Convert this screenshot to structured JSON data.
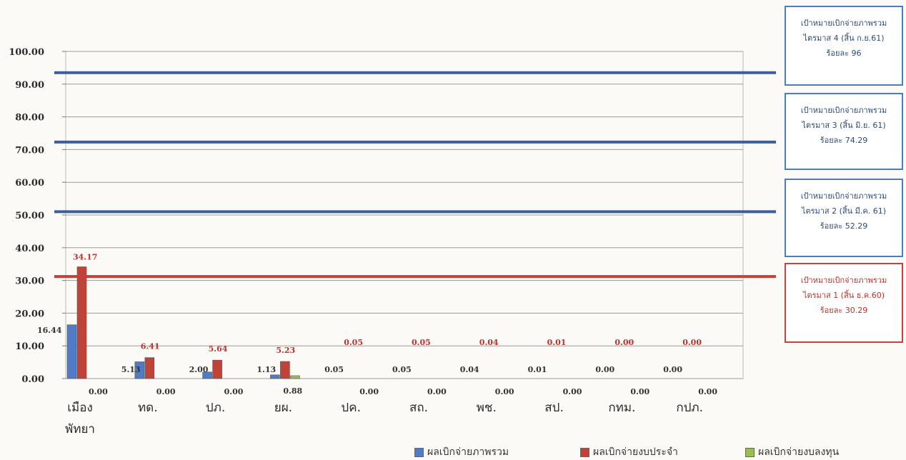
{
  "chart_data": {
    "type": "bar",
    "categories": [
      "เมือง\nพัทยา",
      "ทด.",
      "ปภ.",
      "ยผ.",
      "ปค.",
      "สถ.",
      "พช.",
      "สป.",
      "กทม.",
      "กปภ."
    ],
    "y_ticks": [
      "0.00",
      "10.00",
      "20.00",
      "30.00",
      "40.00",
      "50.00",
      "60.00",
      "70.00",
      "80.00",
      "90.00",
      "100.00"
    ],
    "ylim": [
      0,
      100
    ],
    "grid": true,
    "series": [
      {
        "name": "ผลเบิกจ่ายภาพรวม",
        "color": "#4f7cc4",
        "values": [
          16.44,
          5.13,
          2.0,
          1.13,
          0.05,
          0.05,
          0.04,
          0.01,
          0.0,
          0.0
        ],
        "labels": [
          "16.44",
          "5.13",
          "2.00",
          "1.13",
          "0.05",
          "0.05",
          "0.04",
          "0.01",
          "0.00",
          "0.00"
        ]
      },
      {
        "name": "ผลเบิกจ่ายงบประจำ",
        "color": "#c0433a",
        "values": [
          34.17,
          6.41,
          5.64,
          5.23,
          0.05,
          0.05,
          0.04,
          0.01,
          0.0,
          0.0
        ],
        "labels": [
          "34.17",
          "6.41",
          "5.64",
          "5.23",
          "0.05",
          "0.05",
          "0.04",
          "0.01",
          "0.00",
          "0.00"
        ]
      },
      {
        "name": "ผลเบิกจ่ายงบลงทุน",
        "color": "#9bbb59",
        "values": [
          0.0,
          0.0,
          0.0,
          0.88,
          0.0,
          0.0,
          0.0,
          0.0,
          0.0,
          0.0
        ],
        "labels": [
          "0.00",
          "0.00",
          "0.00",
          "0.88",
          "0.00",
          "0.00",
          "0.00",
          "0.00",
          "0.00",
          "0.00"
        ]
      }
    ],
    "target_lines": [
      {
        "value": 93.5,
        "color": "#3a5f9e"
      },
      {
        "value": 72.3,
        "color": "#3a5f9e"
      },
      {
        "value": 51.0,
        "color": "#3a5f9e"
      },
      {
        "value": 31.2,
        "color": "#c0433a"
      }
    ],
    "legend_position": "bottom-right"
  },
  "target_boxes": [
    {
      "line1": "เป้าหมายเบิกจ่ายภาพรวม",
      "line2": "ไตรมาส 4 (สิ้น ก.ย.61)",
      "line3": "ร้อยละ 96",
      "style": "blue"
    },
    {
      "line1": "เป้าหมายเบิกจ่ายภาพรวม",
      "line2": "ไตรมาส 3 (สิ้น มิ.ย. 61)",
      "line3": "ร้อยละ 74.29",
      "style": "blue"
    },
    {
      "line1": "เป้าหมายเบิกจ่ายภาพรวม",
      "line2": "ไตรมาส 2 (สิ้น มี.ค. 61)",
      "line3": "ร้อยละ 52.29",
      "style": "blue"
    },
    {
      "line1": "เป้าหมายเบิกจ่ายภาพรวม",
      "line2": "ไตรมาส 1 (สิ้น ธ.ค.60)",
      "line3": "ร้อยละ 30.29",
      "style": "red"
    }
  ]
}
